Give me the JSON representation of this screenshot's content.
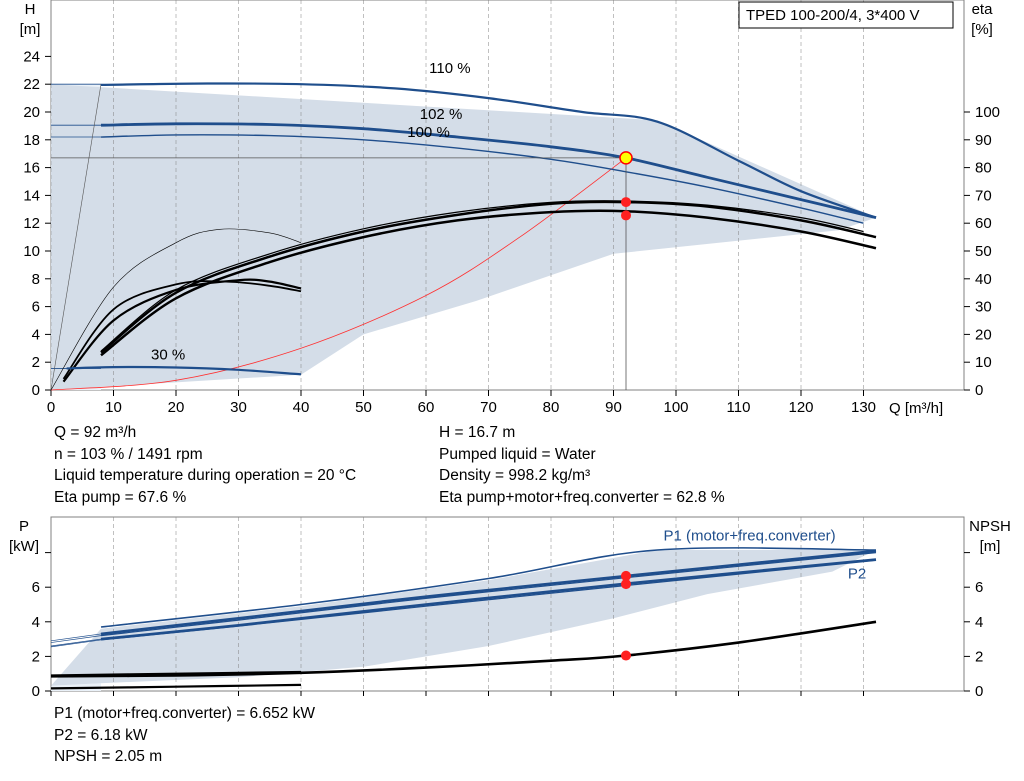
{
  "title_box": "TPED 100-200/4, 3*400 V",
  "chart_data": [
    {
      "type": "line",
      "name": "head-eta",
      "xlabel": "Q [m³/h]",
      "ylabel_left": [
        "H",
        "[m]"
      ],
      "ylabel_right": [
        "eta",
        "[%]"
      ],
      "xlim": [
        0,
        142
      ],
      "ylim_left": [
        0,
        27.5
      ],
      "ylim_right": [
        0,
        120
      ],
      "x_ticks": [
        "0",
        "10",
        "20",
        "30",
        "40",
        "50",
        "60",
        "70",
        "80",
        "90",
        "100",
        "110",
        "120",
        "130"
      ],
      "y_ticks_left": [
        "0",
        "2",
        "4",
        "6",
        "8",
        "10",
        "12",
        "14",
        "16",
        "18",
        "20",
        "22",
        "24"
      ],
      "y_ticks_right": [
        "0",
        "10",
        "20",
        "30",
        "40",
        "50",
        "60",
        "70",
        "80",
        "90",
        "100"
      ],
      "grid": true,
      "curve_labels": [
        "110 %",
        "102 %",
        "100 %",
        "30 %"
      ],
      "envelope": [
        [
          0,
          22
        ],
        [
          97,
          19.4
        ],
        [
          132,
          12.4
        ],
        [
          126,
          11.5
        ],
        [
          90,
          9.8
        ],
        [
          68,
          6.4
        ],
        [
          50,
          4.0
        ],
        [
          40,
          1.1
        ],
        [
          0,
          0
        ]
      ],
      "head_curves": [
        {
          "speed": "110 %",
          "points": [
            [
              8,
              21.95
            ],
            [
              25,
              22.05
            ],
            [
              40,
              22
            ],
            [
              55,
              21.7
            ],
            [
              70,
              21
            ],
            [
              85,
              20
            ],
            [
              97,
              19.3
            ],
            [
              110,
              16.5
            ],
            [
              120,
              14.3
            ],
            [
              132,
              12.4
            ]
          ]
        },
        {
          "speed": "102 %",
          "points": [
            [
              8,
              19.05
            ],
            [
              20,
              19.15
            ],
            [
              35,
              19.1
            ],
            [
              50,
              18.8
            ],
            [
              65,
              18.2
            ],
            [
              80,
              17.5
            ],
            [
              92,
              16.7
            ],
            [
              105,
              15.3
            ],
            [
              120,
              13.7
            ],
            [
              132,
              12.4
            ]
          ]
        },
        {
          "speed": "100 %",
          "points": [
            [
              8,
              18.2
            ],
            [
              20,
              18.35
            ],
            [
              35,
              18.3
            ],
            [
              50,
              18
            ],
            [
              65,
              17.4
            ],
            [
              80,
              16.6
            ],
            [
              92,
              15.7
            ],
            [
              105,
              14.6
            ],
            [
              120,
              13.1
            ],
            [
              130,
              12
            ]
          ]
        },
        {
          "speed": "30 %",
          "points": [
            [
              2.5,
              1.55
            ],
            [
              10,
              1.65
            ],
            [
              20,
              1.62
            ],
            [
              30,
              1.45
            ],
            [
              40,
              1.13
            ]
          ]
        }
      ],
      "system_curve": [
        [
          0,
          0
        ],
        [
          20,
          0.7
        ],
        [
          40,
          3
        ],
        [
          60,
          6.8
        ],
        [
          75,
          11
        ],
        [
          92,
          16.7
        ]
      ],
      "eta_curves": [
        [
          [
            8,
            12.5
          ],
          [
            20,
            33
          ],
          [
            35,
            46
          ],
          [
            50,
            55
          ],
          [
            65,
            61
          ],
          [
            80,
            64
          ],
          [
            92,
            64.3
          ],
          [
            105,
            62
          ],
          [
            120,
            57
          ],
          [
            132,
            51
          ]
        ],
        [
          [
            8,
            13.5
          ],
          [
            20,
            35
          ],
          [
            35,
            48
          ],
          [
            50,
            57
          ],
          [
            65,
            63
          ],
          [
            80,
            67
          ],
          [
            92,
            67.6
          ],
          [
            105,
            66
          ],
          [
            120,
            61
          ],
          [
            132,
            55
          ]
        ],
        [
          [
            8,
            14
          ],
          [
            20,
            36
          ],
          [
            35,
            49
          ],
          [
            50,
            58
          ],
          [
            65,
            64
          ],
          [
            80,
            67.5
          ],
          [
            92,
            68
          ],
          [
            105,
            66.5
          ],
          [
            120,
            62
          ],
          [
            130,
            57
          ]
        ],
        [
          [
            0,
            0
          ],
          [
            10,
            37
          ],
          [
            20,
            53
          ],
          [
            27,
            57.8
          ],
          [
            35,
            56.5
          ],
          [
            40,
            53
          ]
        ],
        [
          [
            2,
            3
          ],
          [
            10,
            25
          ],
          [
            20,
            36
          ],
          [
            30,
            39.5
          ],
          [
            35,
            39
          ],
          [
            40,
            36.5
          ]
        ],
        [
          [
            2,
            4
          ],
          [
            10,
            29
          ],
          [
            20,
            38
          ],
          [
            28,
            39
          ],
          [
            35,
            37.5
          ],
          [
            40,
            35.5
          ]
        ]
      ],
      "eta_envelope": [
        [
          0,
          0
        ],
        [
          40,
          37
        ],
        [
          60,
          51
        ],
        [
          80,
          60
        ],
        [
          100,
          61
        ],
        [
          120,
          54
        ],
        [
          132,
          51
        ]
      ],
      "operating_point": {
        "x": 92,
        "y": 16.7
      },
      "eta_points": [
        67.6,
        62.8
      ]
    },
    {
      "type": "line",
      "name": "power-npsh",
      "ylabel_left": [
        "P",
        "[kW]"
      ],
      "ylabel_right": [
        "NPSH",
        "[m]"
      ],
      "xlim": [
        0,
        142
      ],
      "ylim": [
        0,
        8.5
      ],
      "y_ticks_left": [
        "0",
        "2",
        "4",
        "6"
      ],
      "y_ticks_right": [
        "0",
        "2",
        "4",
        "6"
      ],
      "grid": true,
      "curve_labels": [
        "P1 (motor+freq.converter)",
        "P2"
      ],
      "envelope": [
        [
          8,
          3.6
        ],
        [
          40,
          4.9
        ],
        [
          70,
          6.4
        ],
        [
          97,
          8.15
        ],
        [
          132,
          8.15
        ],
        [
          125,
          6.9
        ],
        [
          105,
          5.6
        ],
        [
          90,
          4.2
        ],
        [
          70,
          2.6
        ],
        [
          50,
          1.4
        ],
        [
          30,
          0.8
        ],
        [
          8,
          0.45
        ],
        [
          0,
          0.3
        ]
      ],
      "p1_curve": [
        [
          8,
          3.7
        ],
        [
          40,
          5.0
        ],
        [
          70,
          6.5
        ],
        [
          97,
          8.15
        ],
        [
          132,
          8.15
        ]
      ],
      "power_curves": [
        [
          [
            8,
            2.95
          ],
          [
            30,
            3.75
          ],
          [
            60,
            4.9
          ],
          [
            92,
            6.1
          ],
          [
            132,
            7.55
          ]
        ],
        [
          [
            8,
            3.0
          ],
          [
            30,
            3.8
          ],
          [
            60,
            5.0
          ],
          [
            92,
            6.2
          ],
          [
            132,
            7.6
          ]
        ],
        [
          [
            8,
            3.2
          ],
          [
            30,
            4.1
          ],
          [
            60,
            5.35
          ],
          [
            92,
            6.55
          ],
          [
            132,
            8.0
          ]
        ],
        [
          [
            8,
            3.3
          ],
          [
            30,
            4.2
          ],
          [
            60,
            5.45
          ],
          [
            92,
            6.65
          ],
          [
            132,
            8.1
          ]
        ],
        [
          [
            0,
            0.9
          ],
          [
            20,
            1.0
          ],
          [
            40,
            1.1
          ]
        ],
        [
          [
            0,
            0.15
          ],
          [
            20,
            0.25
          ],
          [
            40,
            0.35
          ]
        ]
      ],
      "npsh_curve": [
        [
          0,
          0.85
        ],
        [
          20,
          0.9
        ],
        [
          40,
          1.05
        ],
        [
          60,
          1.35
        ],
        [
          80,
          1.75
        ],
        [
          92,
          2.05
        ],
        [
          110,
          2.8
        ],
        [
          132,
          4.0
        ]
      ],
      "op_power_points": [
        6.652,
        6.18
      ],
      "op_npsh_point": 2.05
    }
  ],
  "info_top_left": [
    "Q = 92 m³/h",
    "n = 103 % / 1491 rpm",
    "Liquid temperature during operation = 20 °C",
    "Eta pump = 67.6 %"
  ],
  "info_top_right": [
    "H = 16.7 m",
    "Pumped liquid = Water",
    "Density = 998.2 kg/m³",
    "Eta pump+motor+freq.converter = 62.8 %"
  ],
  "info_bottom": [
    "P1 (motor+freq.converter) = 6.652 kW",
    "P2 = 6.18 kW",
    "NPSH = 2.05 m"
  ],
  "colors": {
    "curve": "#1f4e8c",
    "envelope": "#d4dde8",
    "envelope_light": "#eaf1f8",
    "operating_point": "#ff0000",
    "grid": "#808080"
  }
}
